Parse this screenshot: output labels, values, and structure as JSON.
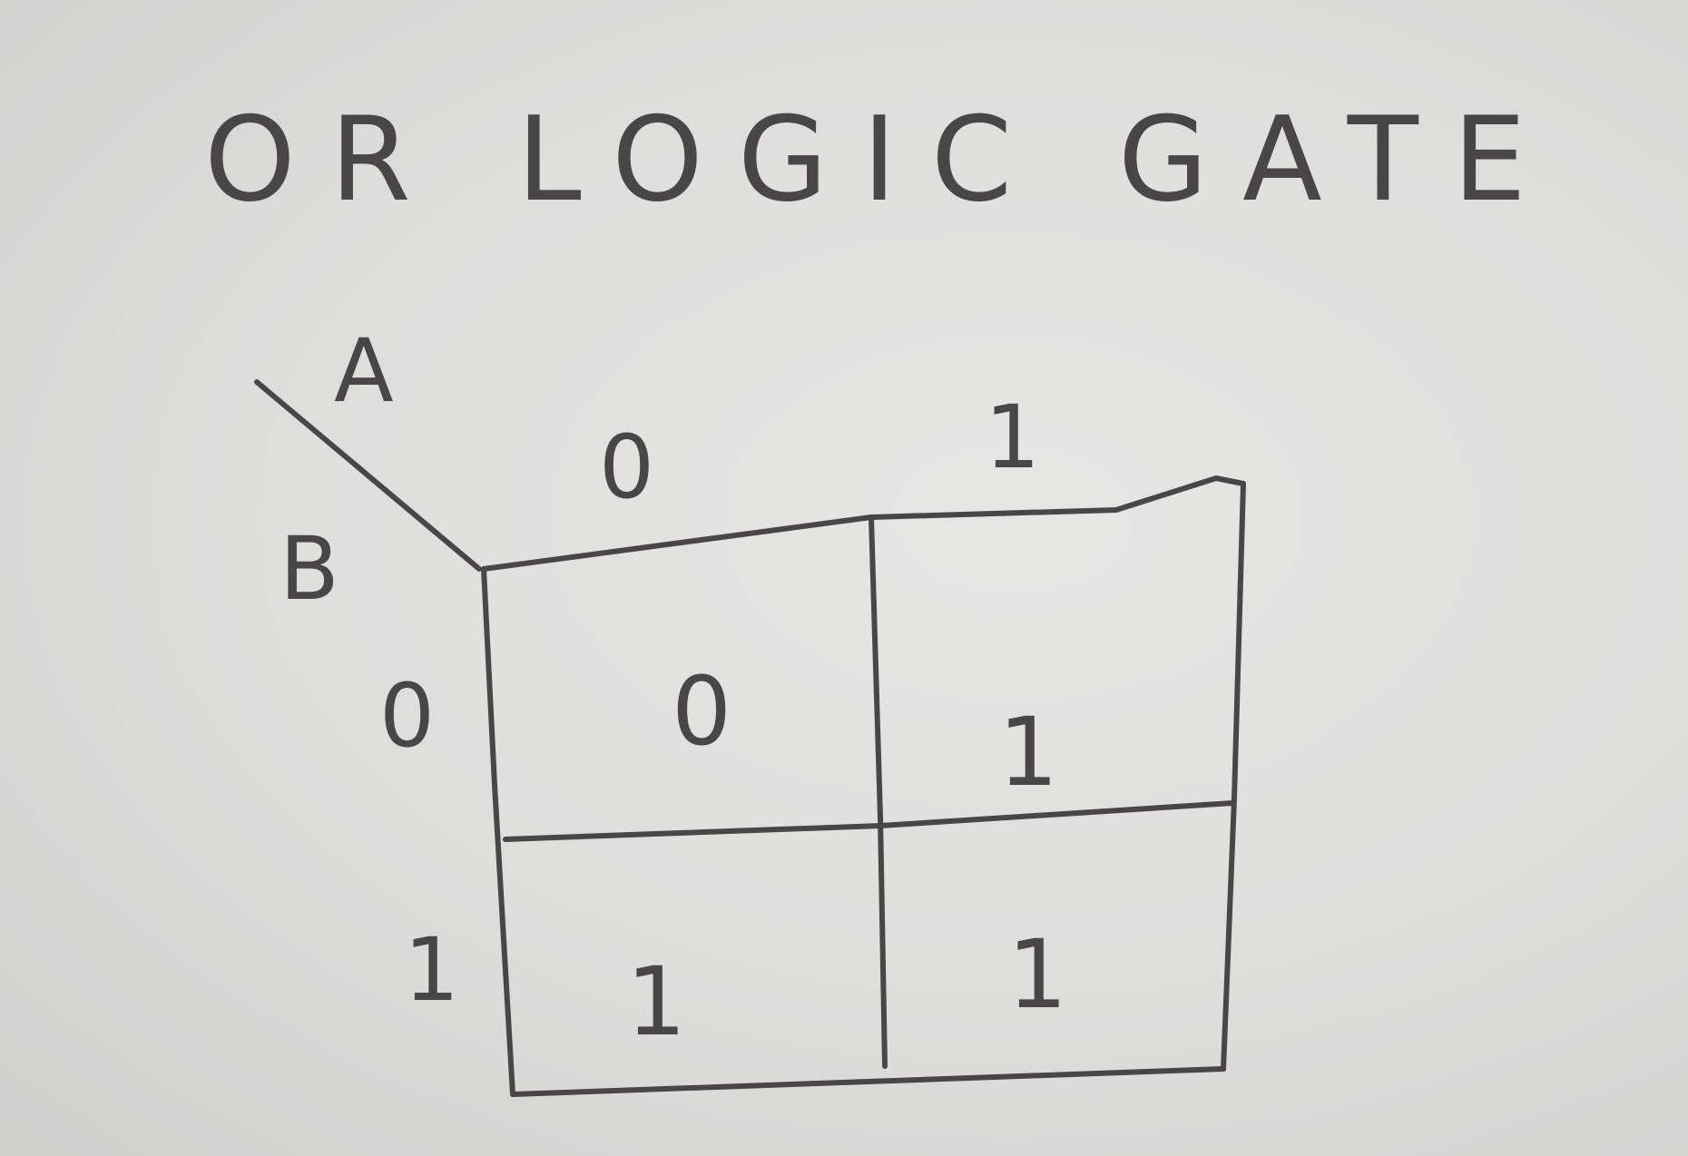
{
  "title": "OR LOGIC GATE",
  "kmap": {
    "row_variable": "B",
    "column_variable": "A",
    "column_headers": [
      "0",
      "1"
    ],
    "row_headers": [
      "0",
      "1"
    ],
    "cells": [
      [
        "0",
        "1"
      ],
      [
        "1",
        "1"
      ]
    ]
  }
}
